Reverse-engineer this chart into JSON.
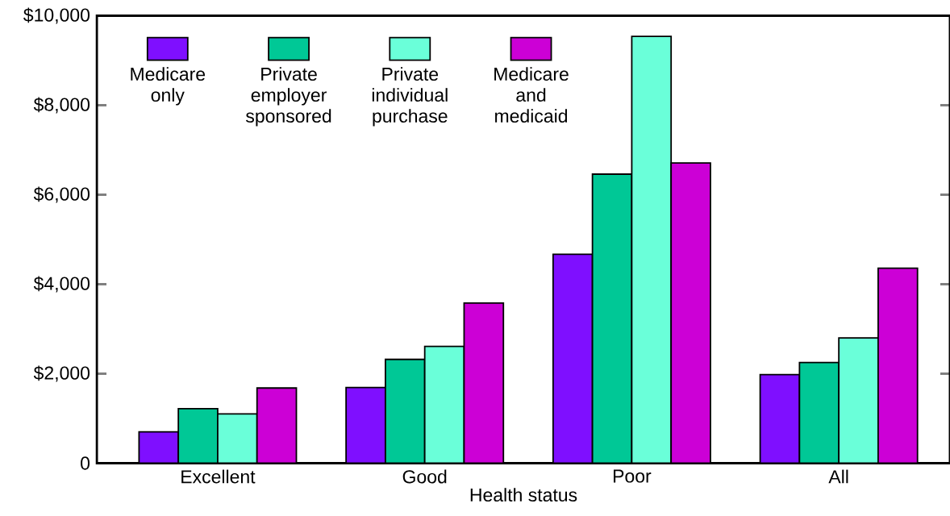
{
  "chart_data": {
    "type": "bar",
    "xlabel": "Health status",
    "categories": [
      "Excellent",
      "Good",
      "Poor",
      "All"
    ],
    "series": [
      {
        "name": "Medicare only",
        "color": "#7f0fff",
        "values": [
          700,
          1690,
          4670,
          1980
        ]
      },
      {
        "name": "Private employer sponsored",
        "color": "#00c896",
        "values": [
          1220,
          2320,
          6460,
          2250
        ]
      },
      {
        "name": "Private individual purchase",
        "color": "#6affd9",
        "values": [
          1100,
          2610,
          9540,
          2800
        ]
      },
      {
        "name": "Medicare and medicaid",
        "color": "#cc00d6",
        "values": [
          1680,
          3580,
          6710,
          4360
        ]
      }
    ],
    "ylim": [
      0,
      10000
    ],
    "yticks": [
      0,
      {
        "value": 2000,
        "label": "$2,000"
      },
      {
        "value": 4000,
        "label": "$4,000"
      },
      {
        "value": 6000,
        "label": "$6,000"
      },
      {
        "value": 8000,
        "label": "$8,000"
      },
      {
        "value": 10000,
        "label": "$10,000"
      }
    ],
    "grid": false,
    "legend": "top left"
  }
}
